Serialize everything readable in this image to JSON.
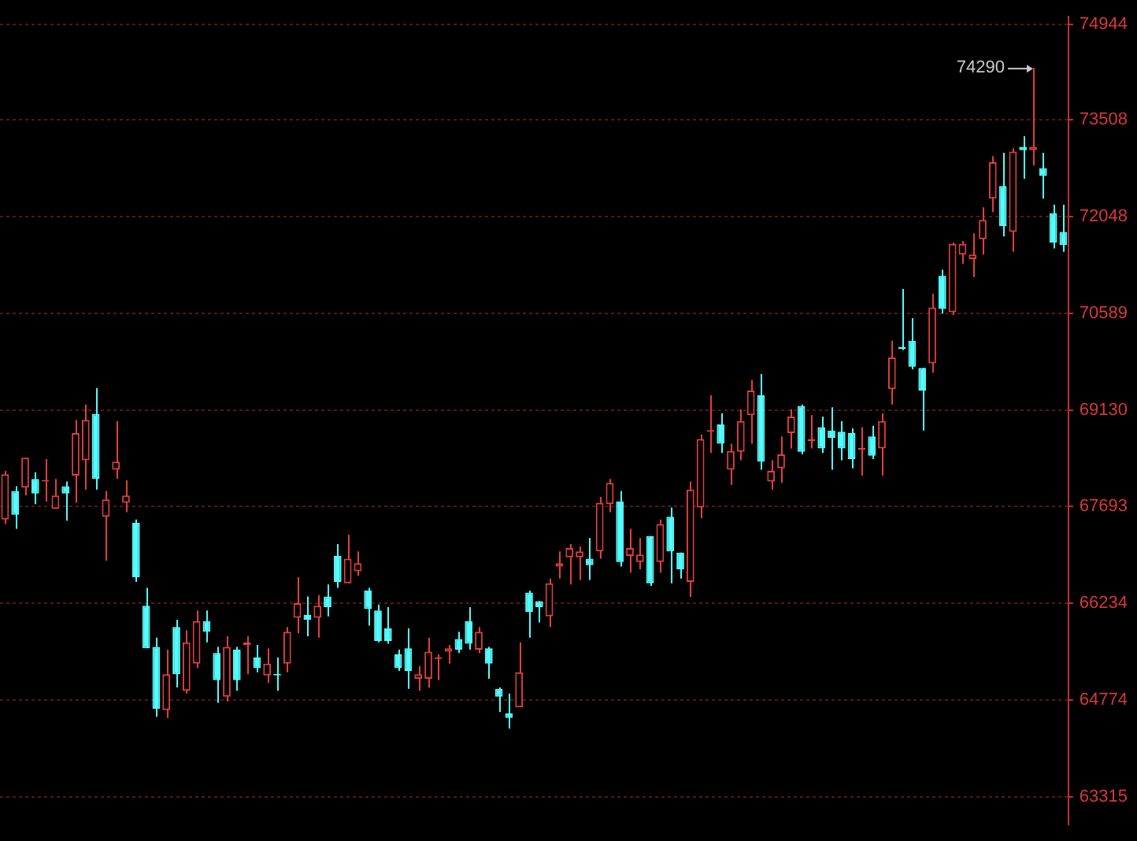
{
  "chart_data": {
    "type": "candlestick",
    "categories": [
      null,
      null,
      null,
      null,
      null,
      null,
      null,
      null,
      null,
      null,
      null,
      null,
      null,
      null,
      null,
      null,
      null,
      null,
      null,
      null,
      null,
      null,
      null,
      null,
      null,
      null,
      null,
      null,
      null,
      null,
      null,
      null,
      null,
      null,
      null,
      null,
      null,
      null,
      null,
      null,
      null,
      null,
      null,
      null,
      null,
      null,
      null,
      null,
      null,
      null,
      null,
      null,
      null,
      null,
      null,
      null,
      null,
      null,
      null,
      null,
      null,
      null,
      null,
      null,
      null,
      null,
      null,
      null,
      null,
      null,
      null,
      null,
      null,
      null,
      null,
      null,
      null,
      null,
      null,
      null,
      null,
      null,
      null,
      null,
      null,
      null,
      null,
      null,
      null,
      null,
      null,
      null,
      null,
      null,
      null,
      null,
      null,
      null,
      null,
      null,
      null,
      null,
      null,
      null,
      null,
      null
    ],
    "ohlc": [
      [
        67490,
        68220,
        67420,
        68170
      ],
      [
        67920,
        67990,
        67350,
        67560
      ],
      [
        67970,
        68420,
        67850,
        68420
      ],
      [
        68100,
        68200,
        67720,
        67880
      ],
      [
        68060,
        68400,
        67760,
        68080
      ],
      [
        67650,
        68100,
        67650,
        67850
      ],
      [
        67990,
        68060,
        67470,
        67880
      ],
      [
        68150,
        68990,
        67740,
        68790
      ],
      [
        68380,
        69220,
        67940,
        68990
      ],
      [
        69080,
        69470,
        67940,
        68100
      ],
      [
        67530,
        67920,
        66870,
        67790
      ],
      [
        68240,
        68970,
        68100,
        68360
      ],
      [
        67740,
        68080,
        67600,
        67850
      ],
      [
        67440,
        67490,
        66550,
        66620
      ],
      [
        66190,
        66460,
        65550,
        65550
      ],
      [
        65570,
        65710,
        64520,
        64640
      ],
      [
        64620,
        65530,
        64500,
        65160
      ],
      [
        65870,
        65980,
        64960,
        65160
      ],
      [
        64910,
        65820,
        64870,
        65640
      ],
      [
        65320,
        66120,
        65250,
        65960
      ],
      [
        65960,
        66120,
        65640,
        65800
      ],
      [
        65480,
        65570,
        64730,
        65070
      ],
      [
        64820,
        65730,
        64750,
        65570
      ],
      [
        65530,
        65570,
        64910,
        65070
      ],
      [
        65600,
        65730,
        65160,
        65640
      ],
      [
        65410,
        65600,
        65190,
        65250
      ],
      [
        65140,
        65550,
        65030,
        65320
      ],
      [
        65160,
        65410,
        64910,
        65140
      ],
      [
        65320,
        65870,
        65190,
        65800
      ],
      [
        66010,
        66620,
        65780,
        66230
      ],
      [
        66050,
        66330,
        65730,
        65980
      ],
      [
        66010,
        66350,
        65710,
        66190
      ],
      [
        66330,
        66510,
        66030,
        66170
      ],
      [
        66940,
        67120,
        66460,
        66550
      ],
      [
        66530,
        67260,
        66530,
        66900
      ],
      [
        66710,
        67010,
        66640,
        66830
      ],
      [
        66420,
        66460,
        65890,
        66140
      ],
      [
        66120,
        66210,
        65640,
        65660
      ],
      [
        65850,
        66170,
        65620,
        65660
      ],
      [
        65460,
        65530,
        65210,
        65250
      ],
      [
        65550,
        65850,
        64940,
        65210
      ],
      [
        65090,
        65280,
        64910,
        65160
      ],
      [
        65090,
        65710,
        64960,
        65500
      ],
      [
        65390,
        65460,
        65070,
        65410
      ],
      [
        65500,
        65600,
        65320,
        65550
      ],
      [
        65690,
        65800,
        65480,
        65530
      ],
      [
        65960,
        66170,
        65530,
        65620
      ],
      [
        65530,
        65870,
        65480,
        65800
      ],
      [
        65550,
        65570,
        65090,
        65320
      ],
      [
        64940,
        64960,
        64590,
        64820
      ],
      [
        64570,
        64870,
        64340,
        64500
      ],
      [
        64660,
        65640,
        64660,
        65190
      ],
      [
        66390,
        66420,
        65710,
        66100
      ],
      [
        66260,
        66260,
        65940,
        66170
      ],
      [
        66030,
        66600,
        65870,
        66530
      ],
      [
        66780,
        67010,
        66600,
        66830
      ],
      [
        66920,
        67120,
        66510,
        67060
      ],
      [
        66920,
        67080,
        66580,
        67010
      ],
      [
        66900,
        67210,
        66580,
        66800
      ],
      [
        67010,
        67830,
        66900,
        67740
      ],
      [
        67720,
        68100,
        67600,
        68040
      ],
      [
        67760,
        67920,
        66780,
        66850
      ],
      [
        66940,
        67350,
        66690,
        67060
      ],
      [
        66850,
        67210,
        66740,
        66960
      ],
      [
        67240,
        67240,
        66490,
        66530
      ],
      [
        66850,
        67490,
        66690,
        67420
      ],
      [
        67530,
        67670,
        66530,
        67010
      ],
      [
        66990,
        66990,
        66600,
        66740
      ],
      [
        66550,
        68060,
        66320,
        67940
      ],
      [
        67670,
        68770,
        67510,
        68700
      ],
      [
        68810,
        69360,
        68490,
        68830
      ],
      [
        68920,
        69090,
        68490,
        68630
      ],
      [
        68240,
        68630,
        68010,
        68520
      ],
      [
        68510,
        69150,
        68380,
        68970
      ],
      [
        69060,
        69590,
        68630,
        69430
      ],
      [
        69360,
        69680,
        68240,
        68360
      ],
      [
        68060,
        68380,
        67940,
        68220
      ],
      [
        68260,
        68740,
        68040,
        68470
      ],
      [
        68790,
        69150,
        68560,
        69040
      ],
      [
        69200,
        69220,
        68470,
        68510
      ],
      [
        68670,
        69060,
        68560,
        68700
      ],
      [
        68880,
        69040,
        68490,
        68560
      ],
      [
        68830,
        69180,
        68240,
        68720
      ],
      [
        68810,
        68970,
        68380,
        68560
      ],
      [
        68790,
        68860,
        68260,
        68400
      ],
      [
        68540,
        68880,
        68150,
        68560
      ],
      [
        68740,
        68900,
        68400,
        68450
      ],
      [
        68560,
        69090,
        68150,
        68970
      ],
      [
        69450,
        70180,
        69220,
        69930
      ],
      [
        70090,
        70960,
        70040,
        70060
      ],
      [
        70180,
        70520,
        69750,
        69790
      ],
      [
        69770,
        69770,
        68830,
        69430
      ],
      [
        69840,
        70890,
        69700,
        70680
      ],
      [
        71160,
        71250,
        70590,
        70660
      ],
      [
        70610,
        71660,
        70570,
        71640
      ],
      [
        71480,
        71680,
        71340,
        71640
      ],
      [
        71410,
        71800,
        71140,
        71480
      ],
      [
        71710,
        72190,
        71480,
        72000
      ],
      [
        72320,
        72960,
        72120,
        72870
      ],
      [
        72510,
        73010,
        71750,
        71910
      ],
      [
        71820,
        73080,
        71520,
        73030
      ],
      [
        73100,
        73260,
        72620,
        73050
      ],
      [
        73050,
        74290,
        72820,
        73100
      ],
      [
        72780,
        73010,
        72320,
        72660
      ],
      [
        72100,
        72230,
        71570,
        71660
      ],
      [
        71820,
        72230,
        71520,
        71620
      ]
    ],
    "colors": [
      "#e0403c",
      "#54fcfc",
      "#e0403c",
      "#54fcfc",
      "#e0403c",
      "#e0403c",
      "#54fcfc",
      "#e0403c",
      "#e0403c",
      "#54fcfc",
      "#e0403c",
      "#e0403c",
      "#e0403c",
      "#54fcfc",
      "#54fcfc",
      "#54fcfc",
      "#e0403c",
      "#54fcfc",
      "#e0403c",
      "#e0403c",
      "#54fcfc",
      "#54fcfc",
      "#e0403c",
      "#54fcfc",
      "#e0403c",
      "#54fcfc",
      "#e0403c",
      "#54fcfc",
      "#e0403c",
      "#e0403c",
      "#54fcfc",
      "#e0403c",
      "#54fcfc",
      "#54fcfc",
      "#e0403c",
      "#e0403c",
      "#54fcfc",
      "#54fcfc",
      "#54fcfc",
      "#54fcfc",
      "#54fcfc",
      "#e0403c",
      "#e0403c",
      "#e0403c",
      "#e0403c",
      "#54fcfc",
      "#54fcfc",
      "#e0403c",
      "#54fcfc",
      "#54fcfc",
      "#54fcfc",
      "#e0403c",
      "#54fcfc",
      "#54fcfc",
      "#e0403c",
      "#e0403c",
      "#e0403c",
      "#e0403c",
      "#54fcfc",
      "#e0403c",
      "#e0403c",
      "#54fcfc",
      "#e0403c",
      "#e0403c",
      "#54fcfc",
      "#e0403c",
      "#54fcfc",
      "#54fcfc",
      "#e0403c",
      "#e0403c",
      "#e0403c",
      "#54fcfc",
      "#e0403c",
      "#e0403c",
      "#e0403c",
      "#54fcfc",
      "#e0403c",
      "#e0403c",
      "#e0403c",
      "#54fcfc",
      "#e0403c",
      "#54fcfc",
      "#54fcfc",
      "#54fcfc",
      "#54fcfc",
      "#e0403c",
      "#54fcfc",
      "#e0403c",
      "#e0403c",
      "#54fcfc",
      "#54fcfc",
      "#54fcfc",
      "#e0403c",
      "#54fcfc",
      "#e0403c",
      "#e0403c",
      "#e0403c",
      "#e0403c",
      "#e0403c",
      "#54fcfc",
      "#e0403c",
      "#54fcfc",
      "#e0403c",
      "#54fcfc",
      "#54fcfc",
      "#54fcfc"
    ],
    "ylim": [
      62900,
      75060
    ],
    "yticks": [
      63315,
      64774,
      66234,
      67693,
      69130,
      70589,
      72048,
      73508,
      74944
    ],
    "grid": "y",
    "annotations": [
      "74290"
    ]
  }
}
